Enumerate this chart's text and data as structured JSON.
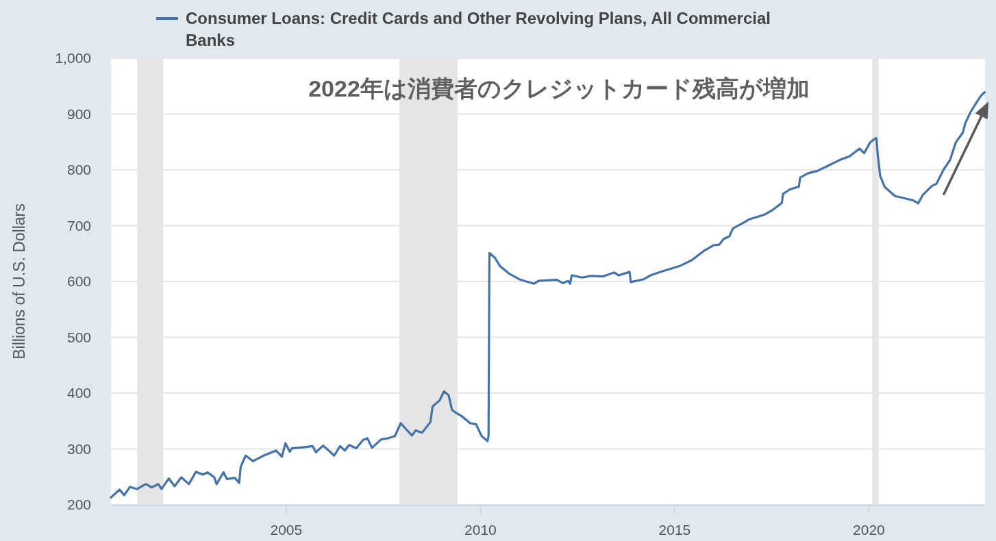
{
  "chart_data": {
    "type": "line",
    "x": [
      "2000-06-28",
      "2000-09-17",
      "2000-10-31",
      "2000-12-24",
      "2001-02-28",
      "2001-05-22",
      "2001-07-16",
      "2001-09-16",
      "2001-10-16",
      "2001-12-24",
      "2002-02-17",
      "2002-04-20",
      "2002-07-01",
      "2002-09-05",
      "2002-11-10",
      "2002-12-24",
      "2003-02-24",
      "2003-03-18",
      "2003-05-22",
      "2003-06-24",
      "2003-09-06",
      "2003-10-16",
      "2003-10-31",
      "2003-12-16",
      "2004-02-24",
      "2004-05-22",
      "2004-09-27",
      "2004-11-21",
      "2004-12-24",
      "2005-02-03",
      "2005-02-24",
      "2005-06-13",
      "2005-09-06",
      "2005-10-08",
      "2005-12-13",
      "2006-03-28",
      "2006-05-22",
      "2006-07-05",
      "2006-08-15",
      "2006-10-20",
      "2006-12-24",
      "2007-02-03",
      "2007-03-18",
      "2007-06-13",
      "2007-08-15",
      "2007-10-20",
      "2007-12-13",
      "2008-02-03",
      "2008-03-28",
      "2008-05-01",
      "2008-07-01",
      "2008-09-17",
      "2008-10-08",
      "2008-12-13",
      "2009-01-23",
      "2009-03-08",
      "2009-04-08",
      "2009-05-22",
      "2009-07-13",
      "2009-09-27",
      "2009-11-21",
      "2010-01-12",
      "2010-03-08",
      "2010-03-18",
      "2010-03-26",
      "2010-05-19",
      "2010-07-01",
      "2010-09-27",
      "2011-01-12",
      "2011-03-08",
      "2011-05-19",
      "2011-07-01",
      "2011-12-20",
      "2012-02-14",
      "2012-04-05",
      "2012-04-23",
      "2012-05-08",
      "2012-08-15",
      "2012-11-07",
      "2013-02-24",
      "2013-06-10",
      "2013-07-24",
      "2013-11-03",
      "2013-11-14",
      "2014-03-18",
      "2014-05-19",
      "2014-09-06",
      "2015-02-21",
      "2015-06-10",
      "2015-09-27",
      "2016-01-01",
      "2016-02-24",
      "2016-04-05",
      "2016-05-30",
      "2016-07-01",
      "2016-10-16",
      "2016-11-28",
      "2017-04-27",
      "2017-07-01",
      "2017-09-02",
      "2017-10-05",
      "2017-10-16",
      "2017-12-20",
      "2018-03-14",
      "2018-03-25",
      "2018-06-10",
      "2018-09-02",
      "2018-12-20",
      "2019-04-05",
      "2019-07-01",
      "2019-10-05",
      "2019-11-18",
      "2020-01-12",
      "2020-02-21",
      "2020-03-11",
      "2020-03-25",
      "2020-04-16",
      "2020-05-30",
      "2020-09-02",
      "2020-12-02",
      "2021-02-24",
      "2021-04-08",
      "2021-05-22",
      "2021-08-15",
      "2021-09-27",
      "2021-12-02",
      "2022-02-03",
      "2022-03-28",
      "2022-06-03",
      "2022-06-24",
      "2022-08-15",
      "2022-10-20",
      "2022-11-21",
      "2022-12-24"
    ],
    "series": [
      {
        "name": "Consumer Loans: Credit Cards and Other Revolving Plans, All Commercial Banks",
        "color": "#4572a7",
        "values": [
          213,
          227,
          217,
          232,
          228,
          237,
          231,
          237,
          228,
          247,
          233,
          249,
          237,
          259,
          254,
          258,
          249,
          237,
          258,
          246,
          248,
          239,
          268,
          288,
          278,
          287,
          297,
          286,
          310,
          295,
          301,
          303,
          305,
          294,
          306,
          288,
          305,
          297,
          307,
          301,
          316,
          319,
          302,
          317,
          319,
          323,
          346,
          335,
          324,
          333,
          329,
          348,
          376,
          387,
          403,
          396,
          370,
          364,
          358,
          346,
          344,
          323,
          314,
          323,
          651,
          642,
          628,
          614,
          603,
          600,
          596,
          601,
          603,
          597,
          601,
          596,
          611,
          607,
          610,
          609,
          616,
          611,
          617,
          599,
          604,
          611,
          618,
          628,
          638,
          654,
          665,
          666,
          676,
          681,
          695,
          706,
          711,
          720,
          727,
          736,
          741,
          757,
          765,
          770,
          786,
          794,
          798,
          808,
          818,
          824,
          838,
          830,
          849,
          855,
          857,
          826,
          789,
          769,
          753,
          749,
          745,
          740,
          755,
          771,
          775,
          800,
          818,
          849,
          867,
          883,
          904,
          924,
          933,
          939
        ]
      }
    ],
    "xlim": [
      "2000-06-28",
      "2022-12-28"
    ],
    "xticks": [
      "2005",
      "2010",
      "2015",
      "2020"
    ],
    "ylim": [
      200,
      1000
    ],
    "yticks": [
      200,
      300,
      400,
      500,
      600,
      700,
      800,
      900,
      {
        "value": 1000,
        "label": "1,000"
      }
    ],
    "ylabel": "Billions of U.S. Dollars",
    "annotations": [
      "2022年は消費者のクレジットカード残高が増加"
    ],
    "bands": [
      {
        "axis": "x",
        "from": "2001-03-01",
        "to": "2001-11-01",
        "color": "#e5e5e5"
      },
      {
        "axis": "x",
        "from": "2007-12-01",
        "to": "2009-06-01",
        "color": "#e5e5e5"
      },
      {
        "axis": "x",
        "from": "2020-02-01",
        "to": "2020-04-01",
        "color": "#e5e5e5"
      }
    ],
    "grid": "y",
    "legend": "top left",
    "line_style": "solid"
  }
}
